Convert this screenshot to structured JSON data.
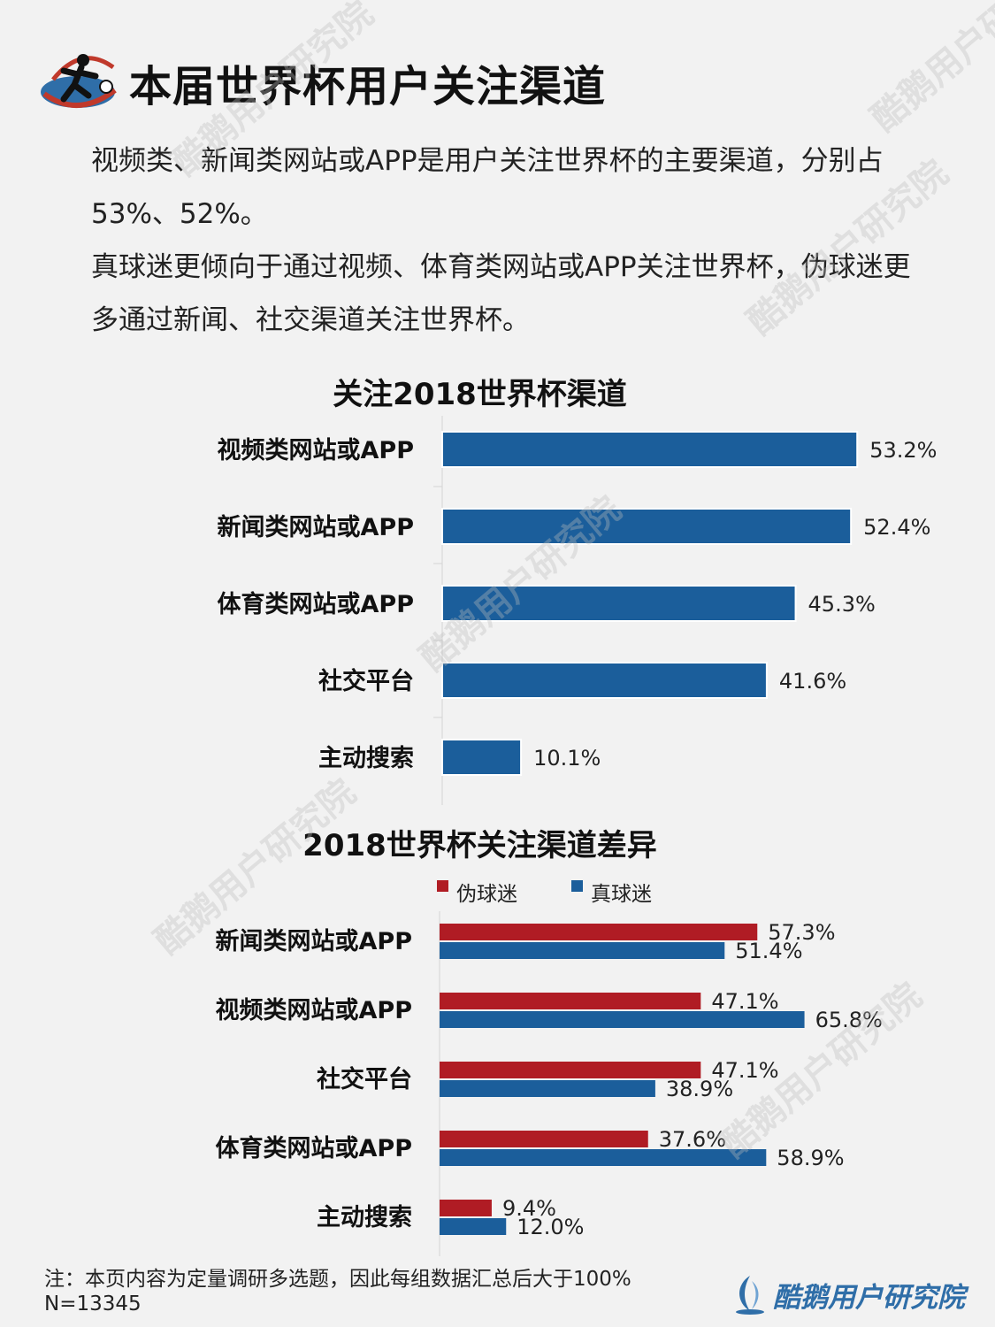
{
  "header": {
    "title": "本届世界杯用户关注渠道"
  },
  "intro": {
    "paragraph1": "视频类、新闻类网站或APP是用户关注世界杯的主要渠道，分别占53%、52%。",
    "paragraph2": "真球迷更倾向于通过视频、体育类网站或APP关注世界杯，伪球迷更多通过新闻、社交渠道关注世界杯。"
  },
  "watermark": {
    "text": "酷鹅用户研究院"
  },
  "chart_data": [
    {
      "type": "bar",
      "orientation": "horizontal",
      "title": "关注2018世界杯渠道",
      "categories": [
        "视频类网站或APP",
        "新闻类网站或APP",
        "体育类网站或APP",
        "社交平台",
        "主动搜索"
      ],
      "values": [
        53.2,
        52.4,
        45.3,
        41.6,
        10.1
      ],
      "value_labels": [
        "53.2%",
        "52.4%",
        "45.3%",
        "41.6%",
        "10.1%"
      ],
      "xlim": [
        0,
        60
      ],
      "grid": false,
      "legend": "none",
      "bar_color": "#1b5e9b"
    },
    {
      "type": "bar",
      "orientation": "horizontal",
      "title": "2018世界杯关注渠道差异",
      "categories": [
        "新闻类网站或APP",
        "视频类网站或APP",
        "社交平台",
        "体育类网站或APP",
        "主动搜索"
      ],
      "series": [
        {
          "name": "伪球迷",
          "color": "#b01c24",
          "values": [
            57.3,
            47.1,
            47.1,
            37.6,
            9.4
          ],
          "value_labels": [
            "57.3%",
            "47.1%",
            "47.1%",
            "37.6%",
            "9.4%"
          ]
        },
        {
          "name": "真球迷",
          "color": "#1b5e9b",
          "values": [
            51.4,
            65.8,
            38.9,
            58.9,
            12.0
          ],
          "value_labels": [
            "51.4%",
            "65.8%",
            "38.9%",
            "58.9%",
            "12.0%"
          ]
        }
      ],
      "xlim": [
        0,
        70
      ],
      "grid": false,
      "legend": "top"
    }
  ],
  "footer": {
    "note": "注：本页内容为定量调研多选题，因此每组数据汇总后大于100%",
    "sample": "N=13345",
    "brand": "酷鹅用户研究院"
  }
}
